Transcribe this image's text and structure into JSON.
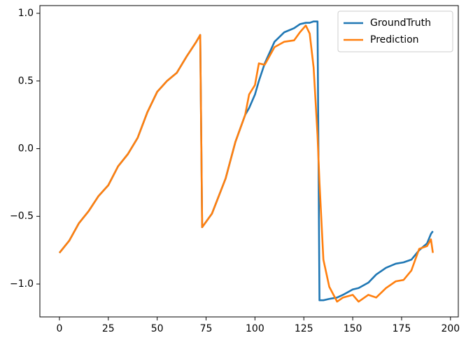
{
  "chart_data": {
    "type": "line",
    "x": [
      0,
      5,
      10,
      15,
      20,
      25,
      30,
      35,
      40,
      45,
      50,
      55,
      60,
      65,
      70,
      72,
      73,
      78,
      85,
      90,
      95,
      97,
      100,
      102,
      105,
      110,
      115,
      120,
      123,
      126,
      128,
      130,
      132,
      133,
      135,
      138,
      142,
      145,
      150,
      153,
      158,
      162,
      167,
      172,
      176,
      180,
      184,
      188,
      190,
      191
    ],
    "series": [
      {
        "name": "GroundTruth",
        "color": "#1f77b4",
        "values": [
          -0.77,
          -0.68,
          -0.55,
          -0.46,
          -0.35,
          -0.27,
          -0.13,
          -0.04,
          0.08,
          0.27,
          0.42,
          0.5,
          0.56,
          0.68,
          0.79,
          0.84,
          -0.58,
          -0.48,
          -0.22,
          0.05,
          0.25,
          0.3,
          0.4,
          0.5,
          0.63,
          0.79,
          0.86,
          0.89,
          0.92,
          0.93,
          0.93,
          0.94,
          0.94,
          -1.12,
          -1.12,
          -1.11,
          -1.1,
          -1.08,
          -1.04,
          -1.03,
          -0.99,
          -0.93,
          -0.88,
          -0.85,
          -0.84,
          -0.82,
          -0.75,
          -0.7,
          -0.63,
          -0.61
        ]
      },
      {
        "name": "Prediction",
        "color": "#ff7f0e",
        "values": [
          -0.77,
          -0.68,
          -0.55,
          -0.46,
          -0.35,
          -0.27,
          -0.13,
          -0.04,
          0.08,
          0.27,
          0.42,
          0.5,
          0.56,
          0.68,
          0.79,
          0.84,
          -0.58,
          -0.48,
          -0.22,
          0.05,
          0.25,
          0.4,
          0.47,
          0.63,
          0.62,
          0.75,
          0.79,
          0.8,
          0.86,
          0.91,
          0.85,
          0.6,
          0.1,
          -0.25,
          -0.82,
          -1.02,
          -1.13,
          -1.1,
          -1.08,
          -1.13,
          -1.08,
          -1.1,
          -1.03,
          -0.98,
          -0.97,
          -0.9,
          -0.74,
          -0.72,
          -0.67,
          -0.77
        ]
      }
    ],
    "xlim": [
      -10,
      204
    ],
    "xticks": [
      0,
      25,
      50,
      75,
      100,
      125,
      150,
      175,
      200
    ],
    "ylim": [
      -1.243,
      1.057
    ],
    "yticks": [
      {
        "value": -1,
        "label": "−1.0"
      },
      {
        "value": -0.5,
        "label": "−0.5"
      },
      {
        "value": 0,
        "label": "0.0"
      },
      0.5,
      {
        "value": 1,
        "label": "1.0"
      }
    ],
    "legend": "upper right"
  }
}
